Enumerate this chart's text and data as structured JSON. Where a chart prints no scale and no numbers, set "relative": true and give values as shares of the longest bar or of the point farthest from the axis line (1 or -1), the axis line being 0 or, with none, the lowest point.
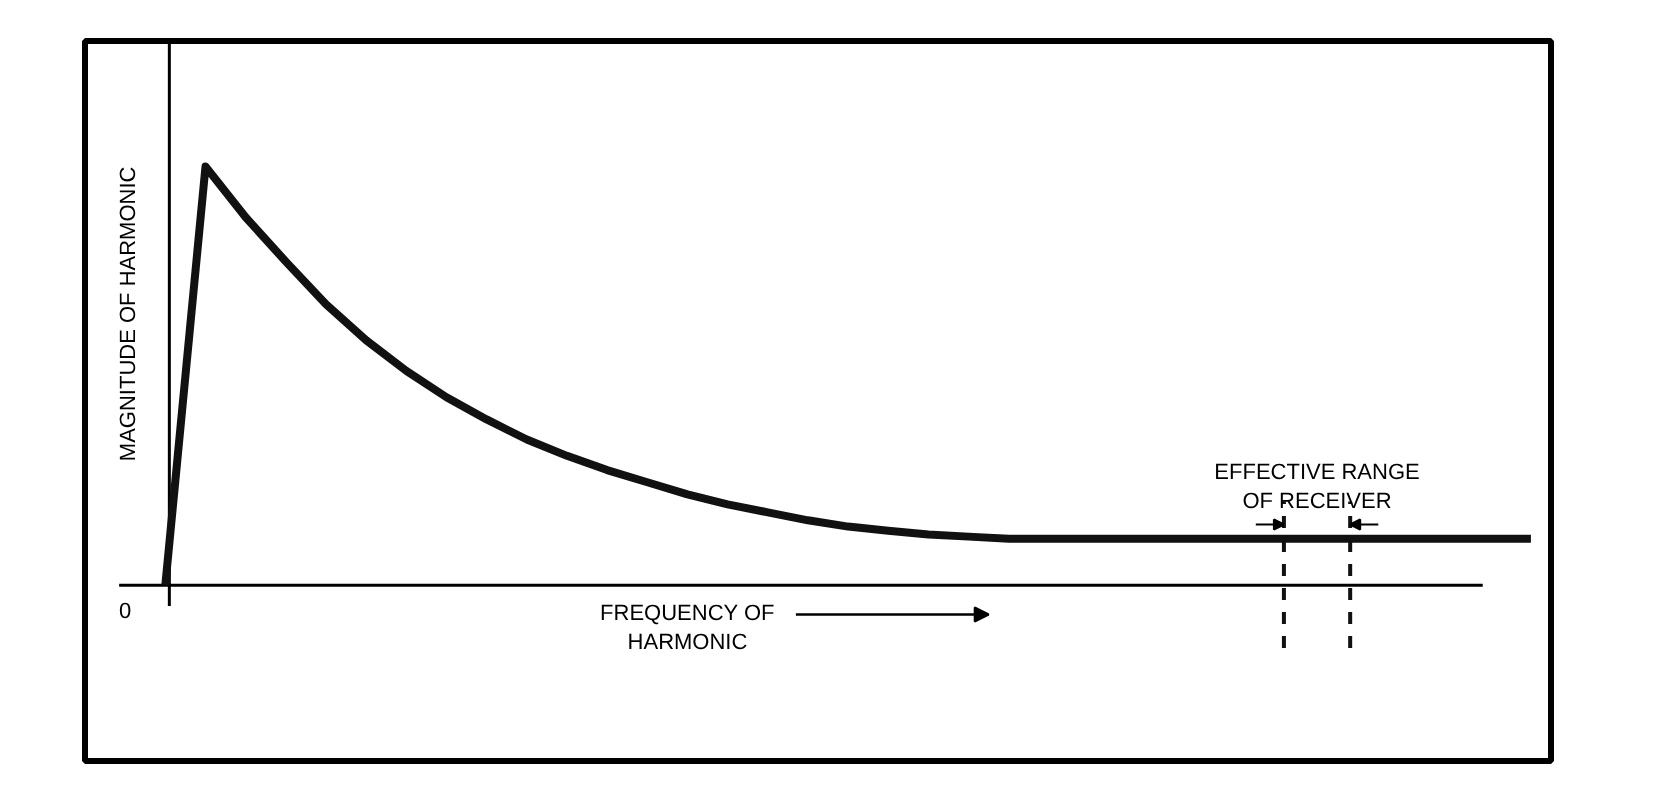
{
  "chart_data": {
    "type": "line",
    "relative": true,
    "xlabel": "FREQUENCY OF\nHARMONIC",
    "ylabel": "MAGNITUDE OF HARMONIC",
    "categories": [
      null,
      null,
      null,
      null,
      null,
      null,
      null,
      null,
      null,
      null,
      null,
      null,
      null,
      null,
      null,
      null,
      null,
      null,
      null,
      null,
      null,
      null,
      null,
      null,
      null,
      null,
      null,
      null,
      null,
      null,
      null,
      null,
      null,
      null,
      null
    ],
    "series": [
      {
        "color": "#111111",
        "values": [
          0,
          1,
          0.879,
          0.773,
          0.671,
          0.585,
          0.512,
          0.449,
          0.396,
          0.348,
          0.309,
          0.275,
          0.246,
          0.217,
          0.193,
          0.174,
          0.155,
          0.14,
          0.13,
          0.121,
          0.116,
          0.111,
          0.111,
          0.111,
          0.111,
          0.111,
          0.111,
          0.111,
          0.111,
          0.111,
          0.111,
          0.111,
          0.111,
          0.111,
          0.111
        ]
      }
    ],
    "marker": "none",
    "line_style": "solid",
    "annotations": [
      "0",
      "EFFECTIVE RANGE\nOF RECEIVER"
    ]
  }
}
